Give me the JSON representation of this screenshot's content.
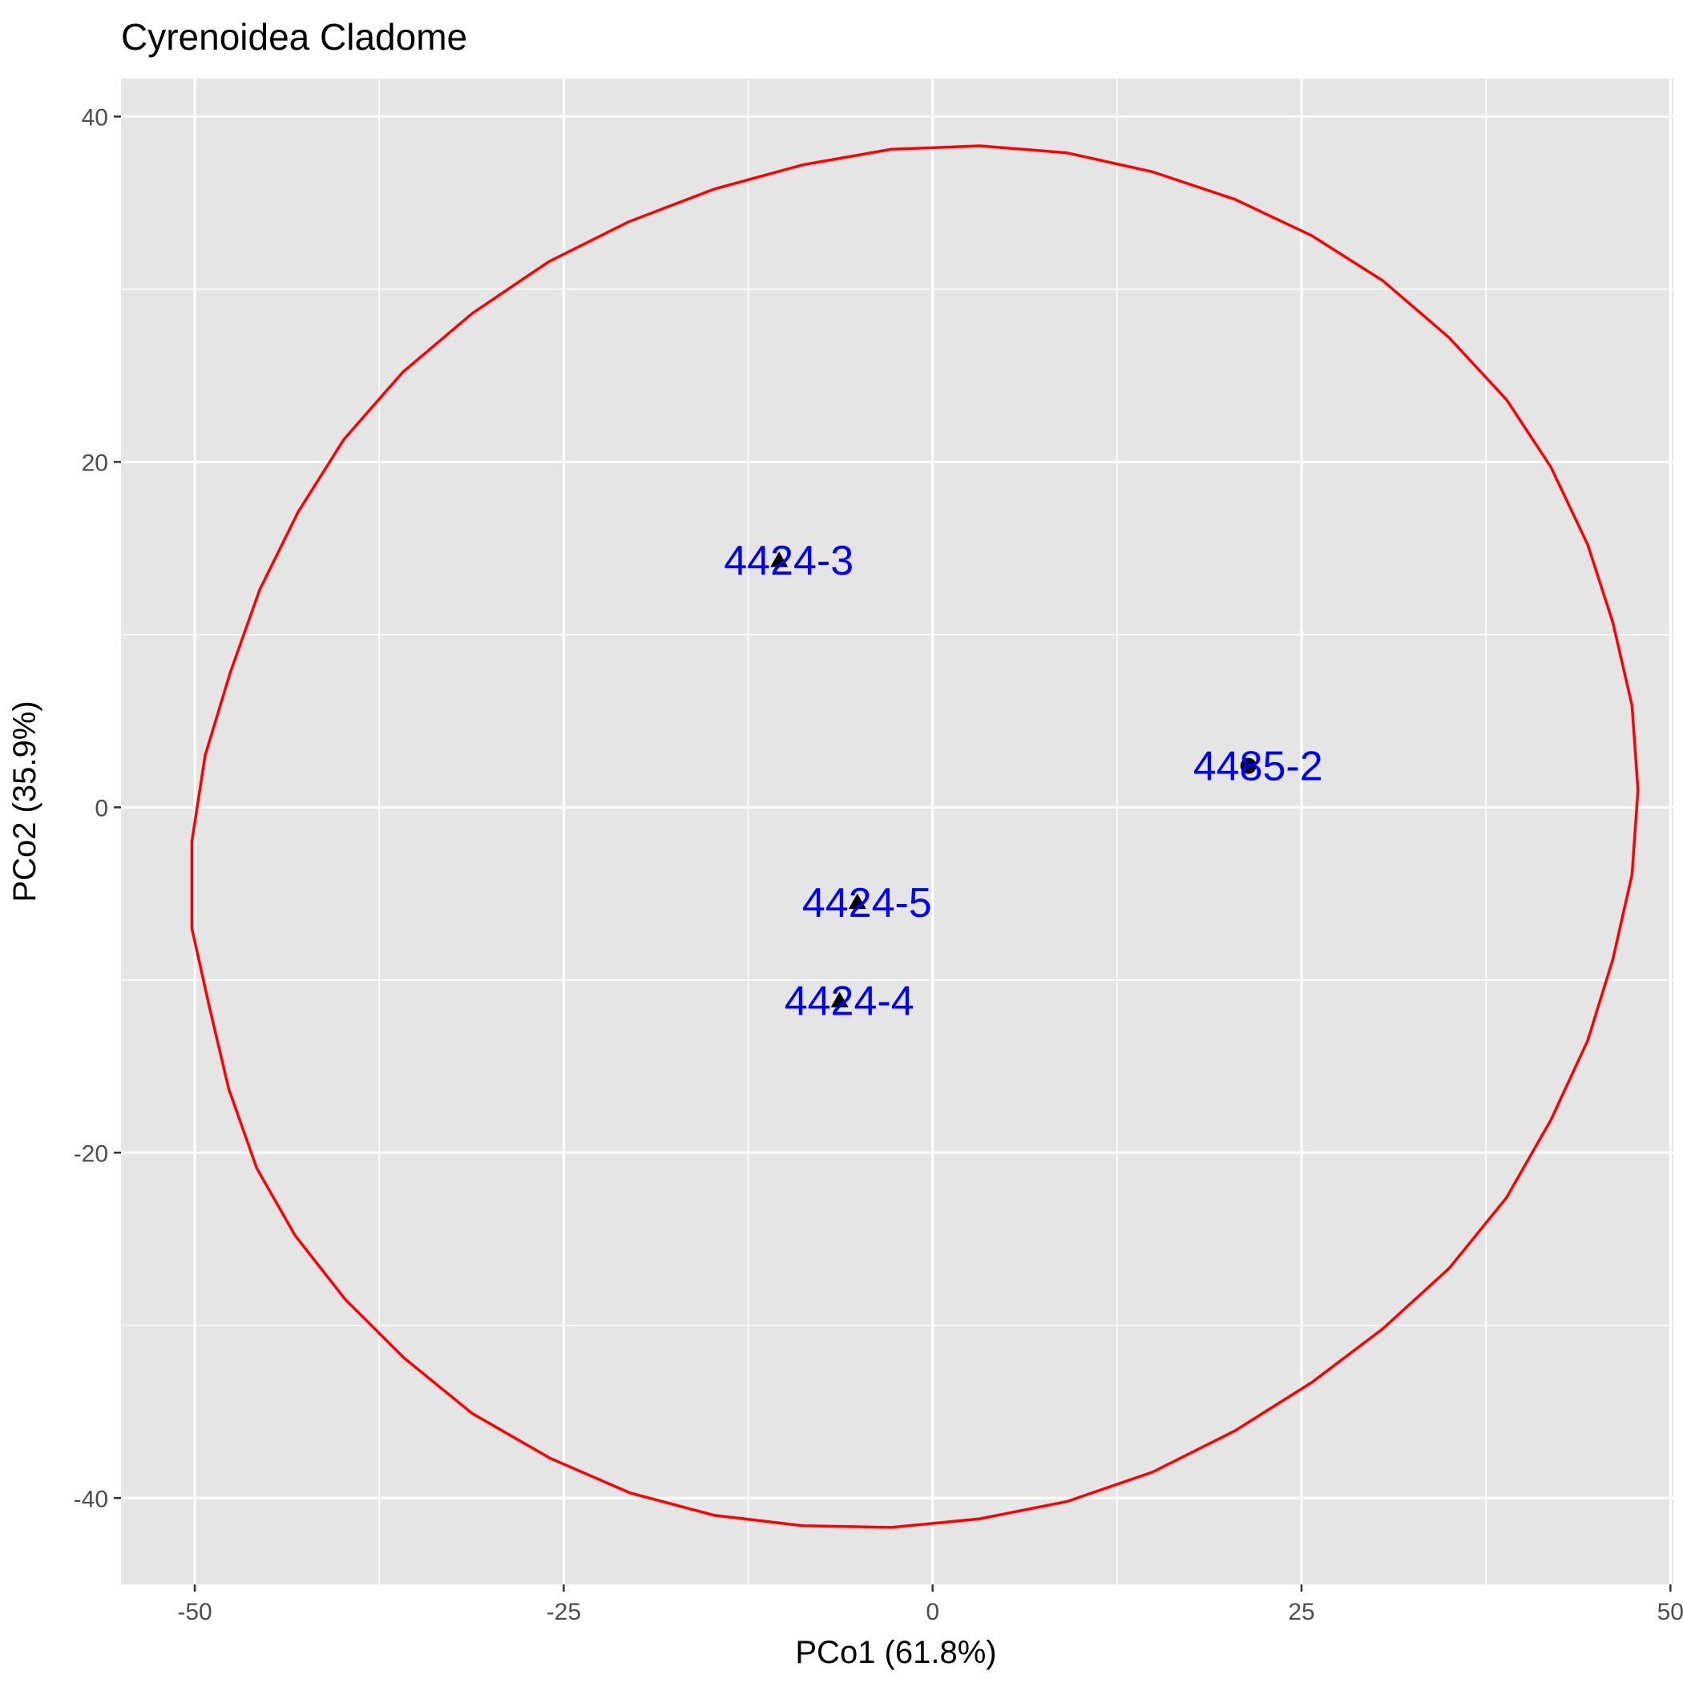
{
  "chart_data": {
    "type": "scatter",
    "title": "Cyrenoidea Cladome",
    "xlabel": "PCo1 (61.8%)",
    "ylabel": "PCo2 (35.9%)",
    "xlim": [
      -55,
      50.2
    ],
    "ylim": [
      -45,
      42.2
    ],
    "x_ticks": [
      -50,
      -25,
      0,
      25,
      50
    ],
    "x_tick_labels": [
      "-50",
      "-25",
      "0",
      "25",
      "50"
    ],
    "y_ticks": [
      -40,
      -20,
      0,
      20,
      40
    ],
    "y_tick_labels": [
      "-40",
      "-20",
      "0",
      "20",
      "40"
    ],
    "grid": true,
    "legend": "none",
    "colors": {
      "panel": "#e5e5e5",
      "grid": "#ffffff",
      "ellipse": "#ff0000",
      "point": "#000000",
      "label": "#0000ff"
    },
    "points": [
      {
        "label": "4424-3",
        "x": -10.4,
        "y": 14.3,
        "shape": "triangle"
      },
      {
        "label": "4485-2",
        "x": 21.4,
        "y": 2.4,
        "shape": "circle"
      },
      {
        "label": "4424-5",
        "x": -5.1,
        "y": -5.5,
        "shape": "triangle"
      },
      {
        "label": "4424-4",
        "x": -6.3,
        "y": -11.2,
        "shape": "triangle"
      }
    ],
    "ellipse": [
      [
        3.2,
        38.3
      ],
      [
        9.1,
        37.9
      ],
      [
        14.9,
        36.8
      ],
      [
        20.5,
        35.2
      ],
      [
        25.7,
        33.1
      ],
      [
        30.5,
        30.5
      ],
      [
        35.0,
        27.2
      ],
      [
        38.9,
        23.6
      ],
      [
        41.9,
        19.7
      ],
      [
        44.4,
        15.2
      ],
      [
        46.1,
        10.7
      ],
      [
        47.4,
        5.9
      ],
      [
        47.8,
        1.0
      ],
      [
        47.4,
        -3.9
      ],
      [
        46.1,
        -8.8
      ],
      [
        44.4,
        -13.5
      ],
      [
        41.9,
        -18.1
      ],
      [
        38.9,
        -22.6
      ],
      [
        35.0,
        -26.7
      ],
      [
        30.5,
        -30.2
      ],
      [
        25.7,
        -33.3
      ],
      [
        20.5,
        -36.1
      ],
      [
        14.9,
        -38.5
      ],
      [
        9.1,
        -40.2
      ],
      [
        3.2,
        -41.2
      ],
      [
        -2.8,
        -41.7
      ],
      [
        -8.8,
        -41.6
      ],
      [
        -14.8,
        -41.0
      ],
      [
        -20.5,
        -39.7
      ],
      [
        -25.9,
        -37.7
      ],
      [
        -31.2,
        -35.1
      ],
      [
        -35.8,
        -31.9
      ],
      [
        -39.8,
        -28.5
      ],
      [
        -43.2,
        -24.8
      ],
      [
        -45.8,
        -20.9
      ],
      [
        -47.7,
        -16.3
      ],
      [
        -49.0,
        -11.6
      ],
      [
        -50.2,
        -7.0
      ],
      [
        -50.2,
        -2.0
      ],
      [
        -49.3,
        3.0
      ],
      [
        -47.6,
        7.8
      ],
      [
        -45.6,
        12.6
      ],
      [
        -43.0,
        17.1
      ],
      [
        -39.9,
        21.3
      ],
      [
        -35.9,
        25.2
      ],
      [
        -31.2,
        28.6
      ],
      [
        -26.0,
        31.6
      ],
      [
        -20.6,
        33.9
      ],
      [
        -14.8,
        35.8
      ],
      [
        -8.8,
        37.2
      ],
      [
        -2.8,
        38.1
      ],
      [
        3.2,
        38.3
      ]
    ]
  }
}
